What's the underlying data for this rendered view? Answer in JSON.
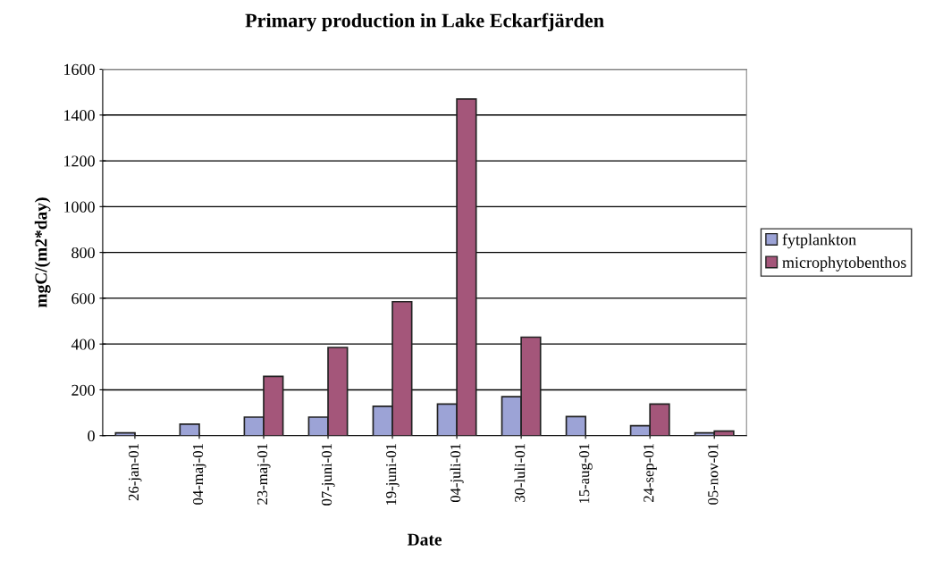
{
  "chart_data": {
    "type": "bar",
    "title": "Primary production in Lake Eckarfjärden",
    "xlabel": "Date",
    "ylabel": "mgC/(m2*day)",
    "categories": [
      "26-jan-01",
      "04-maj-01",
      "23-maj-01",
      "07-juni-01",
      "19-juni-01",
      "04-juli-01",
      "30-luli-01",
      "15-aug-01",
      "24-sep-01",
      "05-nov-01"
    ],
    "series": [
      {
        "name": "fytplankton",
        "color": "#9ca3d6",
        "values": [
          12,
          50,
          81,
          81,
          128,
          138,
          170,
          83,
          43,
          12
        ]
      },
      {
        "name": "microphytobenthos",
        "color": "#a4567a",
        "values": [
          null,
          null,
          259,
          385,
          585,
          1470,
          430,
          null,
          138,
          20
        ]
      }
    ],
    "ylim": [
      0,
      1600
    ],
    "yticks": [
      0,
      200,
      400,
      600,
      800,
      1000,
      1200,
      1400,
      1600
    ],
    "grid": "y",
    "legend": "right"
  }
}
